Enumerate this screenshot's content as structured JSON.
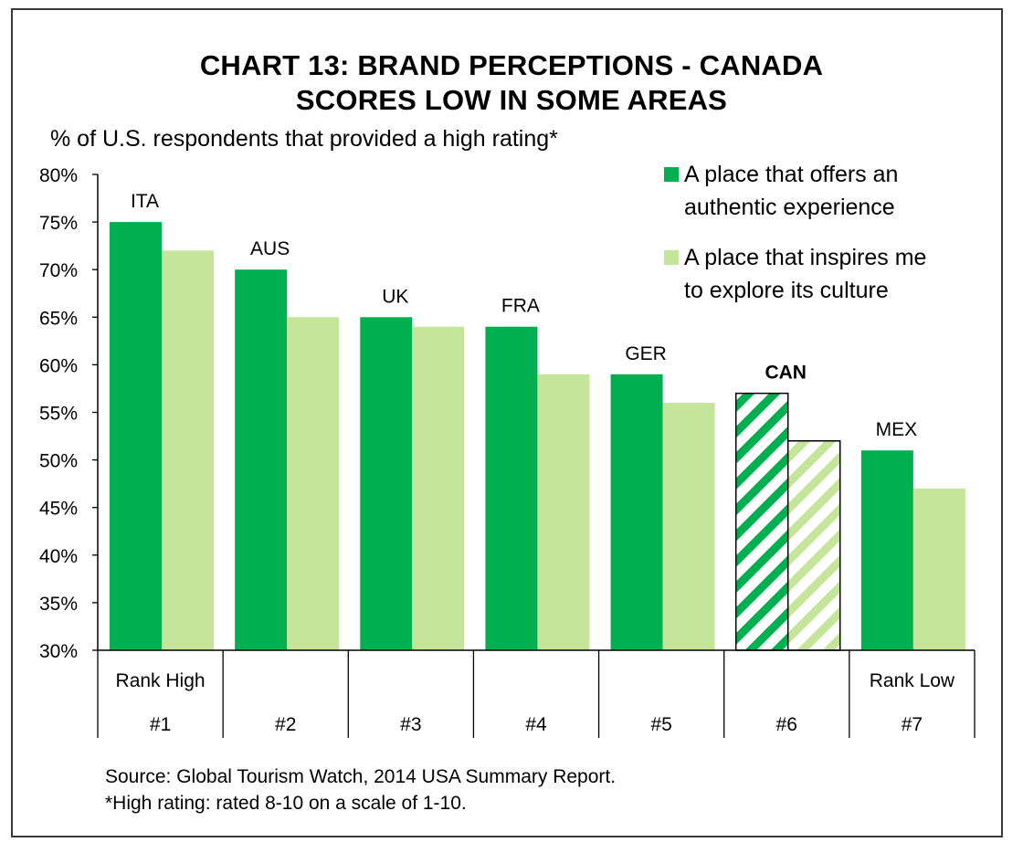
{
  "header": {
    "title_line1": "CHART 13: BRAND PERCEPTIONS - CANADA",
    "title_line2": "SCORES LOW IN SOME AREAS",
    "subtitle": "% of U.S. respondents that provided a high rating*"
  },
  "legend": {
    "items": [
      {
        "line1": "A place that offers an",
        "line2": "authentic experience",
        "color": "#00b050"
      },
      {
        "line1": "A place that inspires me",
        "line2": "to explore its culture",
        "color": "#c4e59a"
      }
    ]
  },
  "footer": {
    "source": "Source: Global Tourism Watch, 2014 USA Summary Report.",
    "note": "*High rating: rated 8-10 on a scale of 1-10."
  },
  "chart_data": {
    "type": "bar",
    "title": "CHART 13: BRAND PERCEPTIONS - CANADA SCORES LOW IN SOME AREAS",
    "ylabel": "% of U.S. respondents that provided a high rating*",
    "ylim": [
      30,
      80
    ],
    "ytick_step": 5,
    "ytick_labels": [
      "30%",
      "35%",
      "40%",
      "45%",
      "50%",
      "55%",
      "60%",
      "65%",
      "70%",
      "75%",
      "80%"
    ],
    "categories": [
      "ITA",
      "AUS",
      "UK",
      "FRA",
      "GER",
      "CAN",
      "MEX"
    ],
    "ranks": [
      "#1",
      "#2",
      "#3",
      "#4",
      "#5",
      "#6",
      "#7"
    ],
    "rank_notes": [
      "Rank High",
      "",
      "",
      "",
      "",
      "",
      "Rank Low"
    ],
    "highlight_category": "CAN",
    "series": [
      {
        "name": "A place that offers an authentic experience",
        "values": [
          75,
          70,
          65,
          64,
          59,
          57,
          51
        ],
        "color": "#00b050"
      },
      {
        "name": "A place that inspires me to explore its culture",
        "values": [
          72,
          65,
          64,
          59,
          56,
          52,
          47
        ],
        "color": "#c4e59a"
      }
    ],
    "grid": false,
    "legend_position": "top-right"
  }
}
